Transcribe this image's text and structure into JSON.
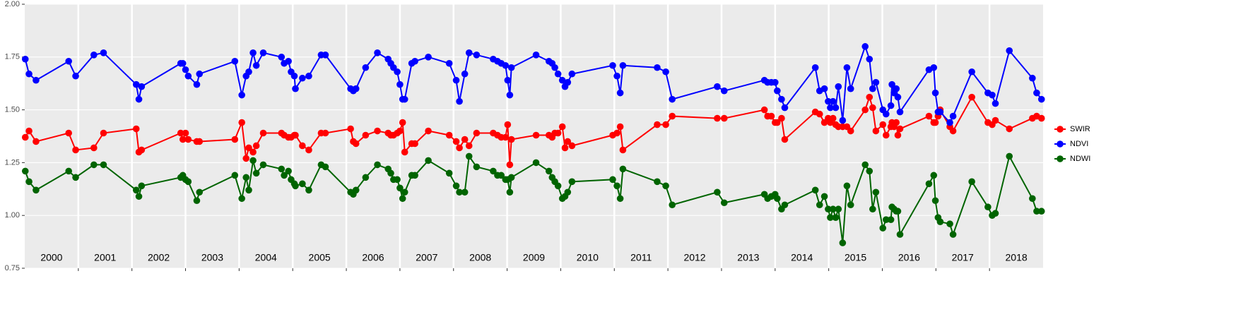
{
  "chart_data": {
    "type": "line",
    "x": [
      2000.01,
      2000.08,
      2000.21,
      2000.82,
      2000.95,
      2001.29,
      2001.47,
      2002.08,
      2002.13,
      2002.18,
      2002.91,
      2002.95,
      2003.0,
      2003.05,
      2003.21,
      2003.26,
      2003.92,
      2004.05,
      2004.13,
      2004.18,
      2004.26,
      2004.32,
      2004.45,
      2004.79,
      2004.84,
      2004.92,
      2004.97,
      2005.03,
      2005.05,
      2005.18,
      2005.3,
      2005.53,
      2005.61,
      2006.08,
      2006.13,
      2006.18,
      2006.36,
      2006.58,
      2006.78,
      2006.83,
      2006.88,
      2006.95,
      2007.0,
      2007.05,
      2007.09,
      2007.22,
      2007.28,
      2007.53,
      2007.92,
      2008.05,
      2008.11,
      2008.21,
      2008.29,
      2008.43,
      2008.74,
      2008.82,
      2008.89,
      2008.97,
      2009.01,
      2009.05,
      2009.08,
      2009.54,
      2009.78,
      2009.84,
      2009.89,
      2009.95,
      2010.03,
      2010.08,
      2010.13,
      2010.21,
      2010.97,
      2011.05,
      2011.11,
      2011.16,
      2011.8,
      2011.96,
      2012.08,
      2012.92,
      2013.05,
      2013.8,
      2013.86,
      2013.93,
      2014.0,
      2014.04,
      2014.12,
      2014.18,
      2014.75,
      2014.83,
      2014.92,
      2014.99,
      2015.03,
      2015.08,
      2015.13,
      2015.18,
      2015.26,
      2015.34,
      2015.41,
      2015.68,
      2015.76,
      2015.82,
      2015.88,
      2016.01,
      2016.07,
      2016.16,
      2016.18,
      2016.22,
      2016.26,
      2016.29,
      2016.33,
      2016.87,
      2016.96,
      2016.99,
      2017.04,
      2017.08,
      2017.26,
      2017.32,
      2017.67,
      2017.97,
      2018.05,
      2018.11,
      2018.37,
      2018.8,
      2018.88,
      2018.97
    ],
    "series": [
      {
        "name": "SWIR",
        "color": "#ff0000",
        "values": [
          1.37,
          1.4,
          1.35,
          1.39,
          1.31,
          1.32,
          1.39,
          1.41,
          1.3,
          1.31,
          1.39,
          1.36,
          1.39,
          1.36,
          1.35,
          1.35,
          1.36,
          1.44,
          1.27,
          1.32,
          1.3,
          1.33,
          1.39,
          1.39,
          1.38,
          1.37,
          1.37,
          1.38,
          1.38,
          1.33,
          1.31,
          1.39,
          1.39,
          1.41,
          1.35,
          1.34,
          1.38,
          1.4,
          1.39,
          1.38,
          1.38,
          1.39,
          1.4,
          1.44,
          1.3,
          1.34,
          1.34,
          1.4,
          1.38,
          1.35,
          1.32,
          1.36,
          1.33,
          1.39,
          1.39,
          1.38,
          1.37,
          1.37,
          1.43,
          1.24,
          1.36,
          1.38,
          1.38,
          1.37,
          1.39,
          1.39,
          1.42,
          1.32,
          1.35,
          1.33,
          1.38,
          1.39,
          1.42,
          1.31,
          1.43,
          1.43,
          1.47,
          1.46,
          1.46,
          1.5,
          1.47,
          1.47,
          1.44,
          1.44,
          1.46,
          1.36,
          1.49,
          1.48,
          1.44,
          1.46,
          1.44,
          1.46,
          1.43,
          1.42,
          1.42,
          1.42,
          1.4,
          1.5,
          1.56,
          1.51,
          1.4,
          1.43,
          1.38,
          1.42,
          1.44,
          1.42,
          1.44,
          1.38,
          1.41,
          1.47,
          1.44,
          1.44,
          1.47,
          1.5,
          1.42,
          1.4,
          1.56,
          1.44,
          1.43,
          1.45,
          1.41,
          1.46,
          1.47,
          1.46
        ]
      },
      {
        "name": "NDVI",
        "color": "#0000ff",
        "values": [
          1.74,
          1.67,
          1.64,
          1.73,
          1.66,
          1.76,
          1.77,
          1.62,
          1.55,
          1.61,
          1.72,
          1.72,
          1.69,
          1.66,
          1.62,
          1.67,
          1.73,
          1.57,
          1.66,
          1.68,
          1.77,
          1.71,
          1.77,
          1.75,
          1.72,
          1.73,
          1.68,
          1.66,
          1.6,
          1.65,
          1.66,
          1.76,
          1.76,
          1.6,
          1.59,
          1.6,
          1.7,
          1.77,
          1.74,
          1.72,
          1.7,
          1.68,
          1.62,
          1.55,
          1.55,
          1.72,
          1.73,
          1.75,
          1.72,
          1.64,
          1.54,
          1.67,
          1.77,
          1.76,
          1.74,
          1.73,
          1.72,
          1.71,
          1.64,
          1.57,
          1.7,
          1.76,
          1.73,
          1.72,
          1.7,
          1.67,
          1.64,
          1.61,
          1.63,
          1.67,
          1.71,
          1.66,
          1.58,
          1.71,
          1.7,
          1.68,
          1.55,
          1.61,
          1.59,
          1.64,
          1.63,
          1.63,
          1.63,
          1.59,
          1.55,
          1.51,
          1.7,
          1.59,
          1.6,
          1.54,
          1.51,
          1.54,
          1.51,
          1.61,
          1.45,
          1.7,
          1.6,
          1.8,
          1.74,
          1.6,
          1.63,
          1.5,
          1.48,
          1.52,
          1.62,
          1.58,
          1.6,
          1.56,
          1.49,
          1.69,
          1.7,
          1.58,
          1.49,
          1.49,
          1.44,
          1.47,
          1.68,
          1.58,
          1.57,
          1.53,
          1.78,
          1.65,
          1.58,
          1.55
        ]
      },
      {
        "name": "NDWI",
        "color": "#006400",
        "values": [
          1.21,
          1.16,
          1.12,
          1.21,
          1.18,
          1.24,
          1.24,
          1.12,
          1.09,
          1.14,
          1.18,
          1.19,
          1.17,
          1.16,
          1.07,
          1.11,
          1.19,
          1.08,
          1.18,
          1.12,
          1.26,
          1.2,
          1.24,
          1.22,
          1.19,
          1.21,
          1.17,
          1.15,
          1.14,
          1.15,
          1.12,
          1.24,
          1.23,
          1.11,
          1.1,
          1.12,
          1.18,
          1.24,
          1.22,
          1.2,
          1.17,
          1.17,
          1.13,
          1.08,
          1.11,
          1.19,
          1.19,
          1.26,
          1.2,
          1.14,
          1.11,
          1.11,
          1.28,
          1.23,
          1.21,
          1.19,
          1.19,
          1.17,
          1.17,
          1.11,
          1.18,
          1.25,
          1.21,
          1.18,
          1.16,
          1.14,
          1.08,
          1.09,
          1.11,
          1.16,
          1.17,
          1.14,
          1.08,
          1.22,
          1.16,
          1.14,
          1.05,
          1.11,
          1.06,
          1.1,
          1.08,
          1.09,
          1.1,
          1.08,
          1.03,
          1.05,
          1.12,
          1.05,
          1.09,
          1.03,
          0.99,
          1.03,
          0.99,
          1.03,
          0.87,
          1.14,
          1.05,
          1.24,
          1.21,
          1.03,
          1.11,
          0.94,
          0.98,
          0.98,
          1.04,
          1.03,
          1.02,
          1.02,
          0.91,
          1.15,
          1.19,
          1.07,
          0.99,
          0.97,
          0.96,
          0.91,
          1.16,
          1.04,
          1.0,
          1.01,
          1.28,
          1.08,
          1.02,
          1.02
        ]
      }
    ],
    "xlim": [
      2000,
      2019
    ],
    "xticks": [
      2001,
      2002,
      2003,
      2004,
      2005,
      2006,
      2007,
      2008,
      2009,
      2010,
      2011,
      2012,
      2013,
      2014,
      2015,
      2016,
      2017,
      2018
    ],
    "year_labels": [
      "2000",
      "2001",
      "2002",
      "2003",
      "2004",
      "2005",
      "2006",
      "2007",
      "2008",
      "2009",
      "2010",
      "2011",
      "2012",
      "2013",
      "2014",
      "2015",
      "2016",
      "2017",
      "2018"
    ],
    "ylim": [
      0.75,
      2
    ],
    "yticks": [
      {
        "value": 0.75,
        "label": "0.75"
      },
      {
        "value": 1,
        "label": "1.00"
      },
      {
        "value": 1.25,
        "label": "1.25"
      },
      {
        "value": 1.5,
        "label": "1.50"
      },
      {
        "value": 1.75,
        "label": "1.75"
      },
      {
        "value": 2,
        "label": "2.00"
      }
    ],
    "grid": true,
    "legend": "right"
  }
}
